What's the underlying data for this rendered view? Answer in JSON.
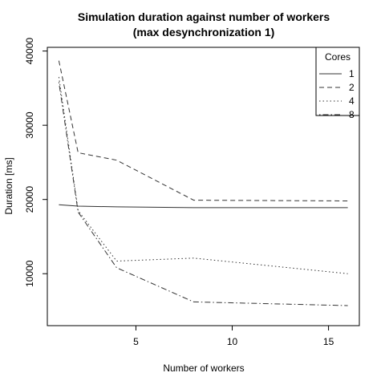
{
  "chart_data": {
    "type": "line",
    "title": "Simulation duration against number of workers",
    "subtitle": "(max desynchronization 1)",
    "xlabel": "Number of workers",
    "ylabel": "Duration [ms]",
    "xlim": [
      0.4,
      16.6
    ],
    "ylim": [
      3000,
      40500
    ],
    "xticks": [
      5,
      10,
      15
    ],
    "yticks": [
      10000,
      20000,
      30000,
      40000
    ],
    "grid": false,
    "legend": {
      "title": "Cores",
      "placement": "top-right"
    },
    "x": [
      1,
      2,
      4,
      8,
      16
    ],
    "series": [
      {
        "name": "1",
        "dash": "solid",
        "values": [
          19300,
          19100,
          19000,
          18900,
          18900
        ]
      },
      {
        "name": "2",
        "dash": "dashed",
        "values": [
          38700,
          26300,
          25300,
          19900,
          19800
        ]
      },
      {
        "name": "4",
        "dash": "dotted",
        "values": [
          36500,
          18500,
          11700,
          12100,
          10000
        ]
      },
      {
        "name": "8",
        "dash": "dashdot",
        "values": [
          35800,
          18300,
          10800,
          6200,
          5700
        ]
      }
    ]
  }
}
